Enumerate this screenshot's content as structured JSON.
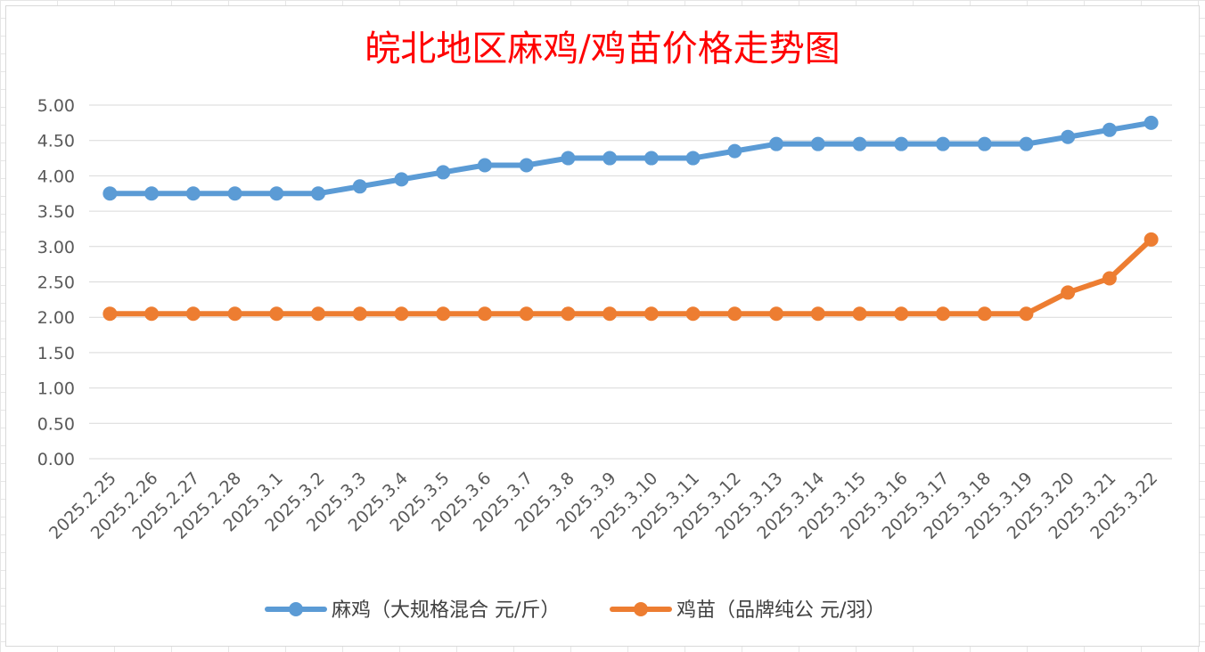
{
  "chart_data": {
    "type": "line",
    "title": "皖北地区麻鸡/鸡苗价格走势图",
    "categories": [
      "2025.2.25",
      "2025.2.26",
      "2025.2.27",
      "2025.2.28",
      "2025.3.1",
      "2025.3.2",
      "2025.3.3",
      "2025.3.4",
      "2025.3.5",
      "2025.3.6",
      "2025.3.7",
      "2025.3.8",
      "2025.3.9",
      "2025.3.10",
      "2025.3.11",
      "2025.3.12",
      "2025.3.13",
      "2025.3.14",
      "2025.3.15",
      "2025.3.16",
      "2025.3.17",
      "2025.3.18",
      "2025.3.19",
      "2025.3.20",
      "2025.3.21",
      "2025.3.22"
    ],
    "y_ticks": [
      "0.00",
      "0.50",
      "1.00",
      "1.50",
      "2.00",
      "2.50",
      "3.00",
      "3.50",
      "4.00",
      "4.50",
      "5.00"
    ],
    "ylim": [
      0,
      5
    ],
    "grid": true,
    "legend_position": "bottom",
    "series": [
      {
        "name": "麻鸡（大规格混合 元/斤）",
        "color": "#5b9bd5",
        "values": [
          3.75,
          3.75,
          3.75,
          3.75,
          3.75,
          3.75,
          3.85,
          3.95,
          4.05,
          4.15,
          4.15,
          4.25,
          4.25,
          4.25,
          4.25,
          4.35,
          4.45,
          4.45,
          4.45,
          4.45,
          4.45,
          4.45,
          4.45,
          4.55,
          4.65,
          4.75
        ]
      },
      {
        "name": "鸡苗（品牌纯公 元/羽）",
        "color": "#ed7d31",
        "values": [
          2.05,
          2.05,
          2.05,
          2.05,
          2.05,
          2.05,
          2.05,
          2.05,
          2.05,
          2.05,
          2.05,
          2.05,
          2.05,
          2.05,
          2.05,
          2.05,
          2.05,
          2.05,
          2.05,
          2.05,
          2.05,
          2.05,
          2.05,
          2.35,
          2.55,
          3.1
        ]
      }
    ]
  }
}
